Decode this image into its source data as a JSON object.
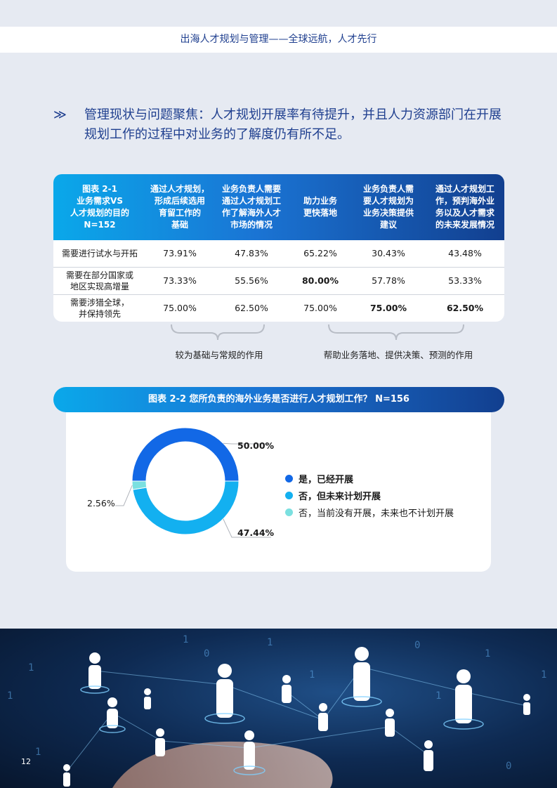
{
  "header": {
    "title": "出海人才规划与管理——全球远航，人才先行"
  },
  "intro": {
    "arrow": "≫",
    "text": "管理现状与问题聚焦：人才规划开展率有待提升，并且人力资源部门在开展规划工作的过程中对业务的了解度仍有所不足。"
  },
  "table21": {
    "header_corner": [
      "图表 2-1",
      "业务需求VS",
      "人才规划的目的",
      "N=152"
    ],
    "columns": [
      [
        "通过人才规划，",
        "形成后续选用",
        "育留工作的",
        "基础"
      ],
      [
        "业务负责人需要",
        "通过人才规划工",
        "作了解海外人才",
        "市场的情况"
      ],
      [
        "助力业务",
        "更快落地"
      ],
      [
        "业务负责人需",
        "要人才规划为",
        "业务决策提供",
        "建议"
      ],
      [
        "通过人才规划工",
        "作，预判海外业",
        "务以及人才需求",
        "的未来发展情况"
      ]
    ],
    "rows": [
      {
        "label": [
          "需要进行试水与开拓"
        ],
        "values": [
          "73.91%",
          "47.83%",
          "65.22%",
          "30.43%",
          "43.48%"
        ],
        "bold": [
          false,
          false,
          false,
          false,
          false
        ]
      },
      {
        "label": [
          "需要在部分国家或",
          "地区实现高增量"
        ],
        "values": [
          "73.33%",
          "55.56%",
          "80.00%",
          "57.78%",
          "53.33%"
        ],
        "bold": [
          false,
          false,
          true,
          false,
          false
        ]
      },
      {
        "label": [
          "需要涉猎全球，",
          "并保持领先"
        ],
        "values": [
          "75.00%",
          "62.50%",
          "75.00%",
          "75.00%",
          "62.50%"
        ],
        "bold": [
          false,
          false,
          false,
          true,
          true
        ]
      }
    ],
    "brace_left_label": "较为基础与常规的作用",
    "brace_right_label": "帮助业务落地、提供决策、预测的作用"
  },
  "chart22": {
    "title": "图表 2-2 您所负责的海外业务是否进行人才规划工作？ N=156"
  },
  "chart_data": {
    "type": "pie",
    "title": "图表 2-2 您所负责的海外业务是否进行人才规划工作？ N=156",
    "categories": [
      "是，已经开展",
      "否，但未来计划开展",
      "否，当前没有开展，未来也不计划开展"
    ],
    "values": [
      50.0,
      47.44,
      2.56
    ],
    "labels": [
      "50.00%",
      "47.44%",
      "2.56%"
    ],
    "colors": [
      "#1268e6",
      "#13b0f0",
      "#7be0e0"
    ],
    "legend": "right"
  },
  "page": {
    "number": "12"
  }
}
